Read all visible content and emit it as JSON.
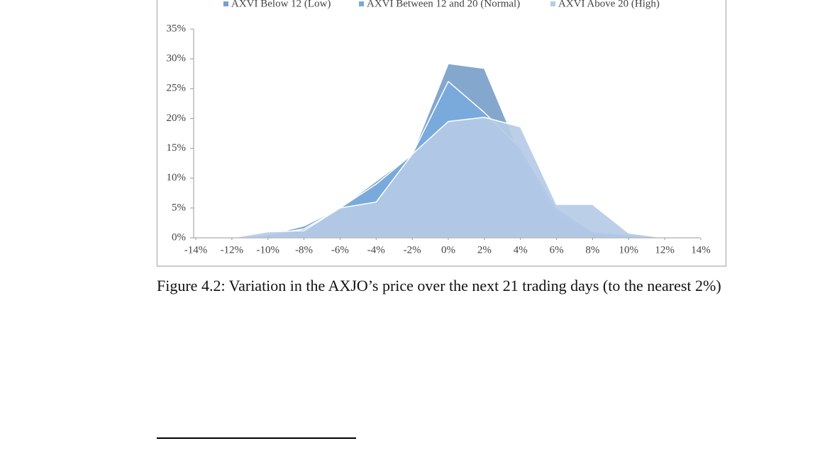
{
  "chart_data": {
    "type": "area",
    "x": [
      -14,
      -12,
      -10,
      -8,
      -6,
      -4,
      -2,
      0,
      2,
      4,
      6,
      8,
      10,
      12,
      14
    ],
    "series": [
      {
        "name": "AXVI Below 12 (Low)",
        "color": "#7a9fc9",
        "values": [
          0,
          0,
          0.5,
          2,
          5,
          9.5,
          14,
          29.2,
          28.4,
          14,
          4,
          1,
          0.3,
          0,
          0
        ]
      },
      {
        "name": "AXVI Between 12 and 20 (Normal)",
        "color": "#78aadc",
        "values": [
          0,
          0,
          0.5,
          1.5,
          5,
          9,
          14,
          26.2,
          21,
          15,
          5,
          1,
          0.5,
          0,
          0
        ]
      },
      {
        "name": "AXVI Above 20 (High)",
        "color": "#b5cbe7",
        "values": [
          0,
          0,
          1,
          1.2,
          5,
          6,
          14,
          19.5,
          20.2,
          18.6,
          5.6,
          5.6,
          0.8,
          0,
          0
        ]
      }
    ],
    "xlim": [
      -14,
      14
    ],
    "xticks": [
      {
        "value": -14,
        "label": "-14%"
      },
      {
        "value": -12,
        "label": "-12%"
      },
      {
        "value": -10,
        "label": "-10%"
      },
      {
        "value": -8,
        "label": "-8%"
      },
      {
        "value": -6,
        "label": "-6%"
      },
      {
        "value": -4,
        "label": "-4%"
      },
      {
        "value": -2,
        "label": "-2%"
      },
      {
        "value": 0,
        "label": "0%"
      },
      {
        "value": 2,
        "label": "2%"
      },
      {
        "value": 4,
        "label": "4%"
      },
      {
        "value": 6,
        "label": "6%"
      },
      {
        "value": 8,
        "label": "8%"
      },
      {
        "value": 10,
        "label": "10%"
      },
      {
        "value": 12,
        "label": "12%"
      },
      {
        "value": 14,
        "label": "14%"
      }
    ],
    "ylim": [
      0,
      35
    ],
    "yticks": [
      {
        "value": 0,
        "label": "0%"
      },
      {
        "value": 5,
        "label": "5%"
      },
      {
        "value": 10,
        "label": "10%"
      },
      {
        "value": 15,
        "label": "15%"
      },
      {
        "value": 20,
        "label": "20%"
      },
      {
        "value": 25,
        "label": "25%"
      },
      {
        "value": 30,
        "label": "30%"
      },
      {
        "value": 35,
        "label": "35%"
      }
    ],
    "legend": "top"
  },
  "caption": "Figure 4.2: Variation in the AXJO’s price over the next 21 trading days (to the nearest 2%)"
}
